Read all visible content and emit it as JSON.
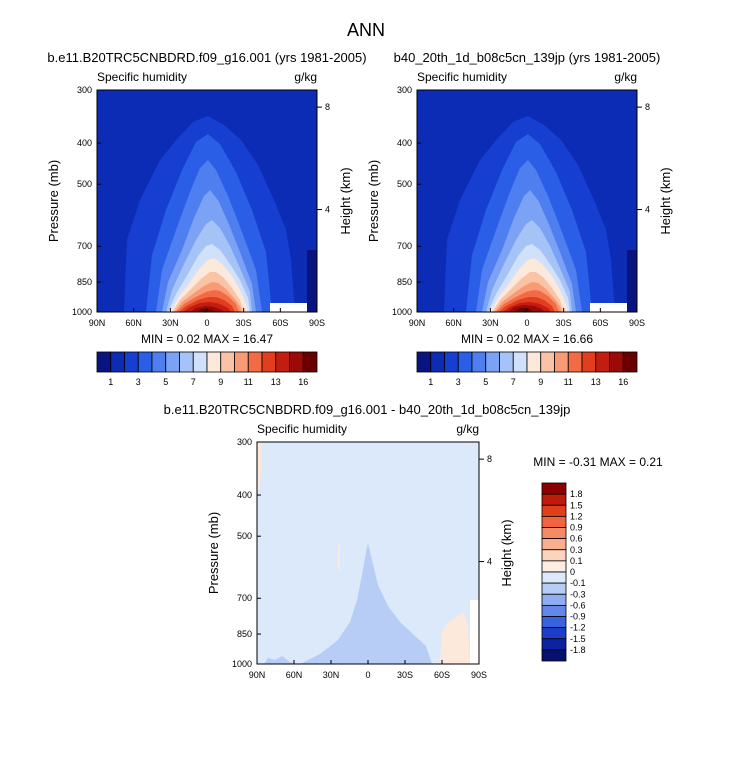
{
  "page_title": "ANN",
  "chart_data": [
    {
      "type": "heatmap",
      "title": "b.e11.B20TRC5CNBDRD.f09_g16.001 (yrs 1981-2005)",
      "subtitle_left": "Specific humidity",
      "subtitle_right": "g/kg",
      "xlabel": "",
      "ylabel": "Pressure (mb)",
      "ylabel_right": "Height (km)",
      "x_ticks": [
        "90N",
        "60N",
        "30N",
        "0",
        "30S",
        "60S",
        "90S"
      ],
      "y_ticks": [
        "300",
        "400",
        "500",
        "700",
        "850",
        "1000"
      ],
      "y_right_ticks": [
        "8",
        "4"
      ],
      "stats": "MIN =  0.02  MAX = 16.47",
      "colorbar": {
        "labels": [
          "1",
          "3",
          "5",
          "7",
          "9",
          "11",
          "13",
          "16"
        ],
        "colors": [
          "#0a1480",
          "#0d2cb5",
          "#163fd2",
          "#2b5ee6",
          "#4f7ef0",
          "#7ba2f5",
          "#a6c3f8",
          "#d2e1fb",
          "#fde8dc",
          "#fbc3a6",
          "#f89a75",
          "#f26b45",
          "#e03e1f",
          "#c21d10",
          "#990a08",
          "#6b0000"
        ]
      }
    },
    {
      "type": "heatmap",
      "title": "b40_20th_1d_b08c5cn_139jp (yrs 1981-2005)",
      "subtitle_left": "Specific humidity",
      "subtitle_right": "g/kg",
      "xlabel": "",
      "ylabel": "Pressure (mb)",
      "ylabel_right": "Height (km)",
      "x_ticks": [
        "90N",
        "60N",
        "30N",
        "0",
        "30S",
        "60S",
        "90S"
      ],
      "y_ticks": [
        "300",
        "400",
        "500",
        "700",
        "850",
        "1000"
      ],
      "y_right_ticks": [
        "8",
        "4"
      ],
      "stats": "MIN =  0.02  MAX = 16.66",
      "colorbar": {
        "labels": [
          "1",
          "3",
          "5",
          "7",
          "9",
          "11",
          "13",
          "16"
        ],
        "colors": [
          "#0a1480",
          "#0d2cb5",
          "#163fd2",
          "#2b5ee6",
          "#4f7ef0",
          "#7ba2f5",
          "#a6c3f8",
          "#d2e1fb",
          "#fde8dc",
          "#fbc3a6",
          "#f89a75",
          "#f26b45",
          "#e03e1f",
          "#c21d10",
          "#990a08",
          "#6b0000"
        ]
      }
    },
    {
      "type": "heatmap",
      "title": "b.e11.B20TRC5CNBDRD.f09_g16.001 - b40_20th_1d_b08c5cn_139jp",
      "subtitle_left": "Specific humidity",
      "subtitle_right": "g/kg",
      "xlabel": "",
      "ylabel": "Pressure (mb)",
      "ylabel_right": "Height (km)",
      "x_ticks": [
        "90N",
        "60N",
        "30N",
        "0",
        "30S",
        "60S",
        "90S"
      ],
      "y_ticks": [
        "300",
        "400",
        "500",
        "700",
        "850",
        "1000"
      ],
      "y_right_ticks": [
        "8",
        "4"
      ],
      "stats": "MIN = -0.31  MAX =  0.21",
      "colorbar": {
        "labels": [
          "1.8",
          "1.5",
          "1.2",
          "0.9",
          "0.6",
          "0.3",
          "0.1",
          "0",
          "-0.1",
          "-0.3",
          "-0.6",
          "-0.9",
          "-1.2",
          "-1.5",
          "-1.8"
        ],
        "colors": [
          "#8b0000",
          "#c01a0a",
          "#e0401a",
          "#f06440",
          "#f58a66",
          "#f9ae8e",
          "#fcd3bd",
          "#fdeee3",
          "#dce9fb",
          "#b8cdf5",
          "#8fadf0",
          "#6488e8",
          "#3a62dc",
          "#1c3ec8",
          "#0c22a0",
          "#061070"
        ]
      }
    }
  ]
}
